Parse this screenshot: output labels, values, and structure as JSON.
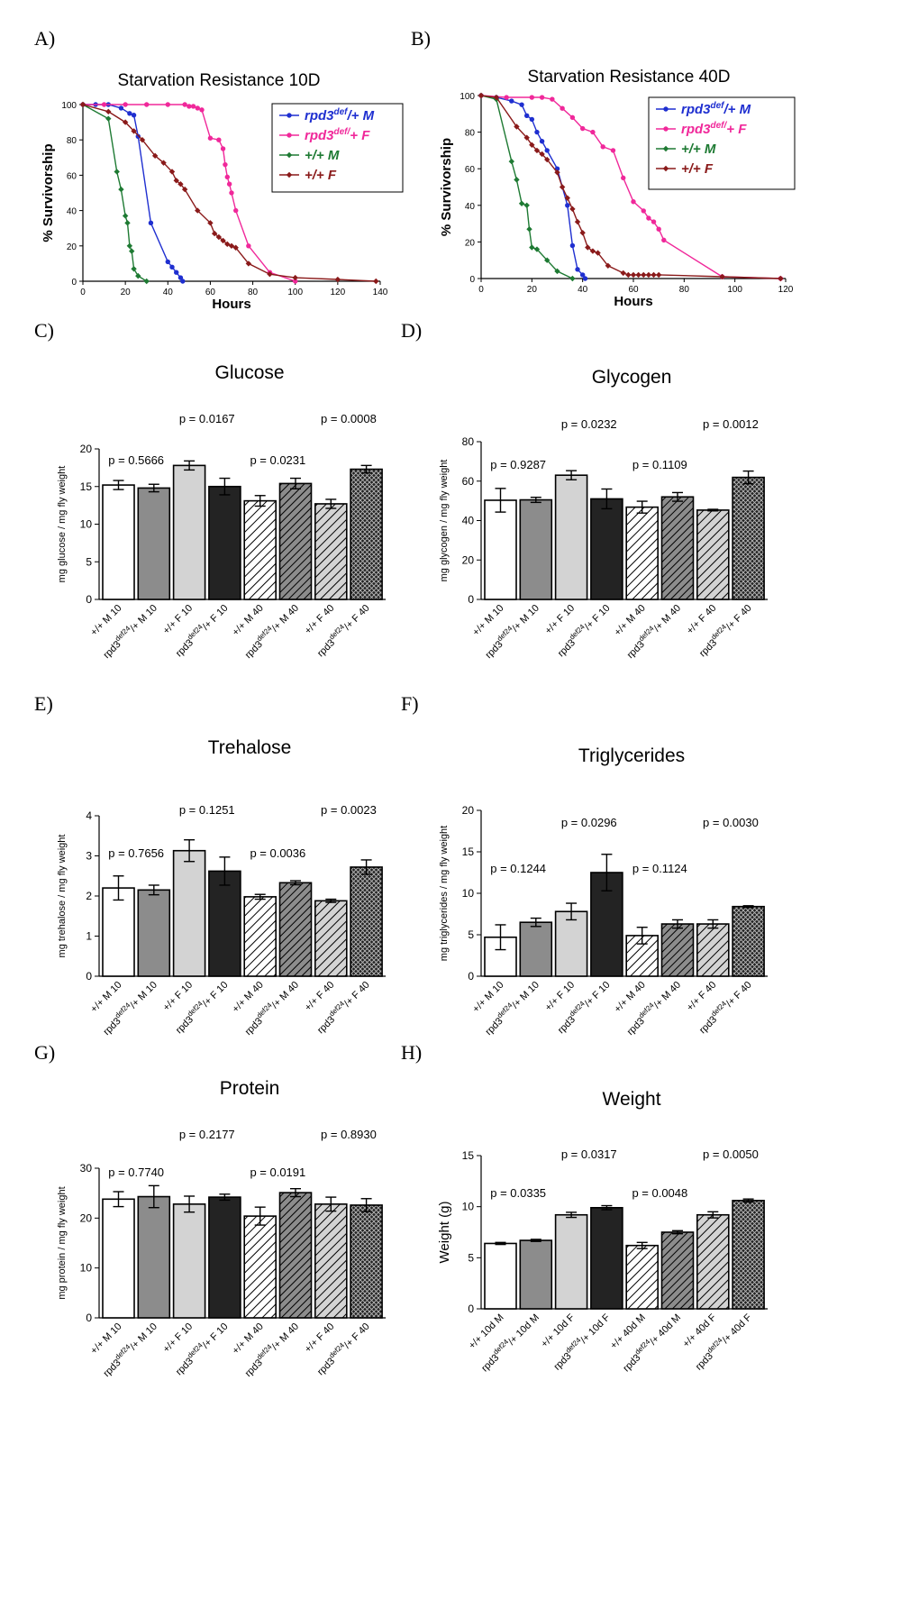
{
  "colors": {
    "blue": "#1f2fd0",
    "pink": "#f0289a",
    "green": "#1e7a33",
    "darkred": "#8a1a1a",
    "white_fill": "#ffffff",
    "grey_fill": "#8c8c8c",
    "light_fill": "#d3d3d3",
    "black_fill": "#232323"
  },
  "chart_data": [
    {
      "panel": "A)",
      "type": "line",
      "title": "Starvation Resistance 10D",
      "xlabel": "Hours",
      "ylabel": "% Survivorship",
      "xlim": [
        0,
        140
      ],
      "ylim": [
        0,
        100
      ],
      "xticks": [
        0,
        20,
        40,
        60,
        80,
        100,
        120,
        140
      ],
      "yticks": [
        0,
        20,
        40,
        60,
        80,
        100
      ],
      "legend_position": "top-right",
      "series": [
        {
          "name": "rpd3",
          "sup": "def",
          "tail": "/+ M",
          "color": "blue",
          "marker": "circle",
          "x": [
            0,
            6,
            12,
            18,
            22,
            24,
            26,
            32,
            40,
            42,
            44,
            46,
            47
          ],
          "y": [
            100,
            100,
            100,
            98,
            95,
            94,
            82,
            33,
            11,
            8,
            5,
            2,
            0
          ]
        },
        {
          "name": "rpd3",
          "sup": "def/",
          "tail": "+ F",
          "color": "pink",
          "marker": "circle",
          "x": [
            0,
            10,
            20,
            30,
            40,
            48,
            50,
            52,
            54,
            56,
            60,
            64,
            66,
            67,
            68,
            69,
            70,
            72,
            78,
            88,
            100
          ],
          "y": [
            100,
            100,
            100,
            100,
            100,
            100,
            99,
            99,
            98,
            97,
            81,
            80,
            75,
            66,
            59,
            55,
            50,
            40,
            20,
            5,
            0
          ]
        },
        {
          "name": "+/+ ",
          "sup": "",
          "tail": "M",
          "color": "green",
          "marker": "diamond",
          "x": [
            0,
            12,
            16,
            18,
            20,
            21,
            22,
            23,
            24,
            26,
            30
          ],
          "y": [
            100,
            92,
            62,
            52,
            37,
            33,
            20,
            17,
            7,
            3,
            0
          ]
        },
        {
          "name": "+/+ ",
          "sup": "",
          "tail": "F",
          "color": "darkred",
          "marker": "diamond",
          "x": [
            0,
            12,
            20,
            24,
            28,
            34,
            38,
            42,
            44,
            46,
            48,
            54,
            60,
            62,
            64,
            66,
            68,
            70,
            72,
            78,
            88,
            100,
            120,
            138
          ],
          "y": [
            100,
            96,
            90,
            85,
            80,
            71,
            67,
            62,
            57,
            55,
            52,
            40,
            33,
            27,
            25,
            23,
            21,
            20,
            19,
            10,
            4,
            2,
            1,
            0
          ]
        }
      ]
    },
    {
      "panel": "B)",
      "type": "line",
      "title": "Starvation Resistance 40D",
      "xlabel": "Hours",
      "ylabel": "% Survivorship",
      "xlim": [
        0,
        120
      ],
      "ylim": [
        0,
        100
      ],
      "xticks": [
        0,
        20,
        40,
        60,
        80,
        100,
        120
      ],
      "yticks": [
        0,
        20,
        40,
        60,
        80,
        100
      ],
      "legend_position": "top-right",
      "series": [
        {
          "name": "rpd3",
          "sup": "def",
          "tail": "/+ M",
          "color": "blue",
          "marker": "circle",
          "x": [
            0,
            6,
            12,
            16,
            18,
            20,
            22,
            24,
            26,
            30,
            34,
            36,
            38,
            40,
            41
          ],
          "y": [
            100,
            99,
            97,
            95,
            89,
            87,
            80,
            75,
            70,
            60,
            40,
            18,
            5,
            2,
            0
          ]
        },
        {
          "name": "rpd3",
          "sup": "def/",
          "tail": "+ F",
          "color": "pink",
          "marker": "circle",
          "x": [
            0,
            10,
            20,
            24,
            28,
            32,
            36,
            40,
            44,
            48,
            52,
            56,
            60,
            64,
            66,
            68,
            70,
            72,
            95,
            118
          ],
          "y": [
            100,
            99,
            99,
            99,
            98,
            93,
            88,
            82,
            80,
            72,
            70,
            55,
            42,
            37,
            33,
            31,
            27,
            21,
            1,
            0
          ]
        },
        {
          "name": "+/+ ",
          "sup": "",
          "tail": "M",
          "color": "green",
          "marker": "diamond",
          "x": [
            0,
            6,
            12,
            14,
            16,
            18,
            19,
            20,
            22,
            26,
            30,
            36
          ],
          "y": [
            100,
            98,
            64,
            54,
            41,
            40,
            27,
            17,
            16,
            10,
            4,
            0
          ]
        },
        {
          "name": "+/+ ",
          "sup": "",
          "tail": "F",
          "color": "darkred",
          "marker": "diamond",
          "x": [
            0,
            6,
            14,
            18,
            20,
            22,
            24,
            26,
            30,
            32,
            34,
            36,
            38,
            40,
            42,
            44,
            46,
            50,
            56,
            58,
            60,
            62,
            64,
            66,
            68,
            70,
            95,
            118
          ],
          "y": [
            100,
            99,
            83,
            77,
            73,
            70,
            68,
            65,
            58,
            50,
            44,
            38,
            31,
            25,
            17,
            15,
            14,
            7,
            3,
            2,
            2,
            2,
            2,
            2,
            2,
            2,
            1,
            0
          ]
        }
      ]
    },
    {
      "panel": "C)",
      "type": "bar",
      "title": "Glucose",
      "ylabel": "mg glucose / mg fly weight",
      "ylim": [
        0,
        20
      ],
      "yticks": [
        0,
        5,
        10,
        15,
        20
      ],
      "values": [
        15.2,
        14.8,
        17.8,
        15.0,
        13.1,
        15.4,
        12.7,
        17.3
      ],
      "errors": [
        0.6,
        0.5,
        0.6,
        1.1,
        0.7,
        0.7,
        0.6,
        0.5
      ],
      "pvalues": [
        {
          "text": "p = 0.5666",
          "over": [
            0,
            1
          ],
          "row": "low"
        },
        {
          "text": "p = 0.0167",
          "over": [
            2,
            3
          ],
          "row": "high"
        },
        {
          "text": "p = 0.0231",
          "over": [
            4,
            5
          ],
          "row": "low"
        },
        {
          "text": "p = 0.0008",
          "over": [
            6,
            7
          ],
          "row": "high"
        }
      ]
    },
    {
      "panel": "D)",
      "type": "bar",
      "title": "Glycogen",
      "ylabel": "mg glycogen / mg fly weight",
      "ylim": [
        0,
        80
      ],
      "yticks": [
        0,
        20,
        40,
        60,
        80
      ],
      "values": [
        50.3,
        50.5,
        63.0,
        51.0,
        46.8,
        52.0,
        45.3,
        61.9
      ],
      "errors": [
        6.0,
        1.3,
        2.3,
        5.0,
        3.0,
        2.2,
        0.4,
        3.2
      ],
      "pvalues": [
        {
          "text": "p = 0.9287",
          "over": [
            0,
            1
          ],
          "row": "low"
        },
        {
          "text": "p = 0.0232",
          "over": [
            2,
            3
          ],
          "row": "high"
        },
        {
          "text": "p = 0.1109",
          "over": [
            4,
            5
          ],
          "row": "low"
        },
        {
          "text": "p = 0.0012",
          "over": [
            6,
            7
          ],
          "row": "high"
        }
      ]
    },
    {
      "panel": "E)",
      "type": "bar",
      "title": "Trehalose",
      "ylabel": "mg trehalose / mg fly weight",
      "ylim": [
        0,
        4
      ],
      "yticks": [
        0,
        1,
        2,
        3,
        4
      ],
      "values": [
        2.2,
        2.15,
        3.13,
        2.62,
        1.98,
        2.33,
        1.88,
        2.72
      ],
      "errors": [
        0.3,
        0.12,
        0.27,
        0.35,
        0.06,
        0.05,
        0.04,
        0.18
      ],
      "pvalues": [
        {
          "text": "p = 0.7656",
          "over": [
            0,
            1
          ],
          "row": "low"
        },
        {
          "text": "p = 0.1251",
          "over": [
            2,
            3
          ],
          "row": "high"
        },
        {
          "text": "p = 0.0036",
          "over": [
            4,
            5
          ],
          "row": "low"
        },
        {
          "text": "p = 0.0023",
          "over": [
            6,
            7
          ],
          "row": "high"
        }
      ]
    },
    {
      "panel": "F)",
      "type": "bar",
      "title": "Triglycerides",
      "ylabel": "mg triglycerides / mg fly weight",
      "ylim": [
        0,
        20
      ],
      "yticks": [
        0,
        5,
        10,
        15,
        20
      ],
      "values": [
        4.7,
        6.5,
        7.8,
        12.5,
        4.9,
        6.3,
        6.3,
        8.4
      ],
      "errors": [
        1.5,
        0.5,
        1.0,
        2.2,
        1.0,
        0.5,
        0.5,
        0.1
      ],
      "pvalues": [
        {
          "text": "p = 0.1244",
          "over": [
            0,
            1
          ],
          "row": "low"
        },
        {
          "text": "p = 0.0296",
          "over": [
            2,
            3
          ],
          "row": "high"
        },
        {
          "text": "p = 0.1124",
          "over": [
            4,
            5
          ],
          "row": "low"
        },
        {
          "text": "p = 0.0030",
          "over": [
            6,
            7
          ],
          "row": "high"
        }
      ]
    },
    {
      "panel": "G)",
      "type": "bar",
      "title": "Protein",
      "ylabel": "mg protein / mg fly weight",
      "ylim": [
        0,
        30
      ],
      "yticks": [
        0,
        10,
        20,
        30
      ],
      "values": [
        23.8,
        24.3,
        22.8,
        24.2,
        20.4,
        25.1,
        22.8,
        22.6
      ],
      "errors": [
        1.5,
        2.2,
        1.6,
        0.6,
        1.8,
        0.8,
        1.4,
        1.3
      ],
      "pvalues": [
        {
          "text": "p = 0.7740",
          "over": [
            0,
            1
          ],
          "row": "low"
        },
        {
          "text": "p = 0.2177",
          "over": [
            2,
            3
          ],
          "row": "high"
        },
        {
          "text": "p = 0.0191",
          "over": [
            4,
            5
          ],
          "row": "low"
        },
        {
          "text": "p = 0.8930",
          "over": [
            6,
            7
          ],
          "row": "high"
        }
      ]
    },
    {
      "panel": "H)",
      "type": "bar",
      "title": "Weight",
      "ylabel": "Weight (g)",
      "ylim": [
        0,
        15
      ],
      "yticks": [
        0,
        5,
        10,
        15
      ],
      "values": [
        6.4,
        6.7,
        9.2,
        9.9,
        6.2,
        7.5,
        9.2,
        10.6
      ],
      "errors": [
        0.1,
        0.1,
        0.25,
        0.2,
        0.3,
        0.15,
        0.3,
        0.15
      ],
      "pvalues": [
        {
          "text": "p = 0.0335",
          "over": [
            0,
            1
          ],
          "row": "low"
        },
        {
          "text": "p = 0.0317",
          "over": [
            2,
            3
          ],
          "row": "high"
        },
        {
          "text": "p = 0.0048",
          "over": [
            4,
            5
          ],
          "row": "low"
        },
        {
          "text": "p = 0.0050",
          "over": [
            6,
            7
          ],
          "row": "high"
        }
      ]
    }
  ],
  "bar_categories": [
    {
      "pre": "+/+ M 10",
      "sup": "",
      "post": ""
    },
    {
      "pre": "rpd3",
      "sup": "def24",
      "post": "/+ M 10"
    },
    {
      "pre": "+/+ F 10",
      "sup": "",
      "post": ""
    },
    {
      "pre": "rpd3",
      "sup": "def24",
      "post": "/+ F 10"
    },
    {
      "pre": "+/+ M 40",
      "sup": "",
      "post": ""
    },
    {
      "pre": "rpd3",
      "sup": "def24",
      "post": "/+ M 40"
    },
    {
      "pre": "+/+ F 40",
      "sup": "",
      "post": ""
    },
    {
      "pre": "rpd3",
      "sup": "def24",
      "post": "/+ F 40"
    }
  ],
  "weight_categories": [
    {
      "pre": "+/+ 10d M",
      "sup": "",
      "post": ""
    },
    {
      "pre": "rpd3",
      "sup": "def24",
      "post": "/+ 10d M"
    },
    {
      "pre": "+/+ 10d F",
      "sup": "",
      "post": ""
    },
    {
      "pre": "rpd3",
      "sup": "def24",
      "post": "/+ 10d F"
    },
    {
      "pre": "+/+ 40d M",
      "sup": "",
      "post": ""
    },
    {
      "pre": "rpd3",
      "sup": "def24",
      "post": "/+ 40d M"
    },
    {
      "pre": "+/+ 40d F",
      "sup": "",
      "post": ""
    },
    {
      "pre": "rpd3",
      "sup": "def24",
      "post": "/+ 40d F"
    }
  ],
  "bar_fill_styles": [
    "white",
    "grey",
    "light",
    "black",
    "hatch-white",
    "hatch-grey",
    "hatch-light",
    "crosshatch-black"
  ]
}
